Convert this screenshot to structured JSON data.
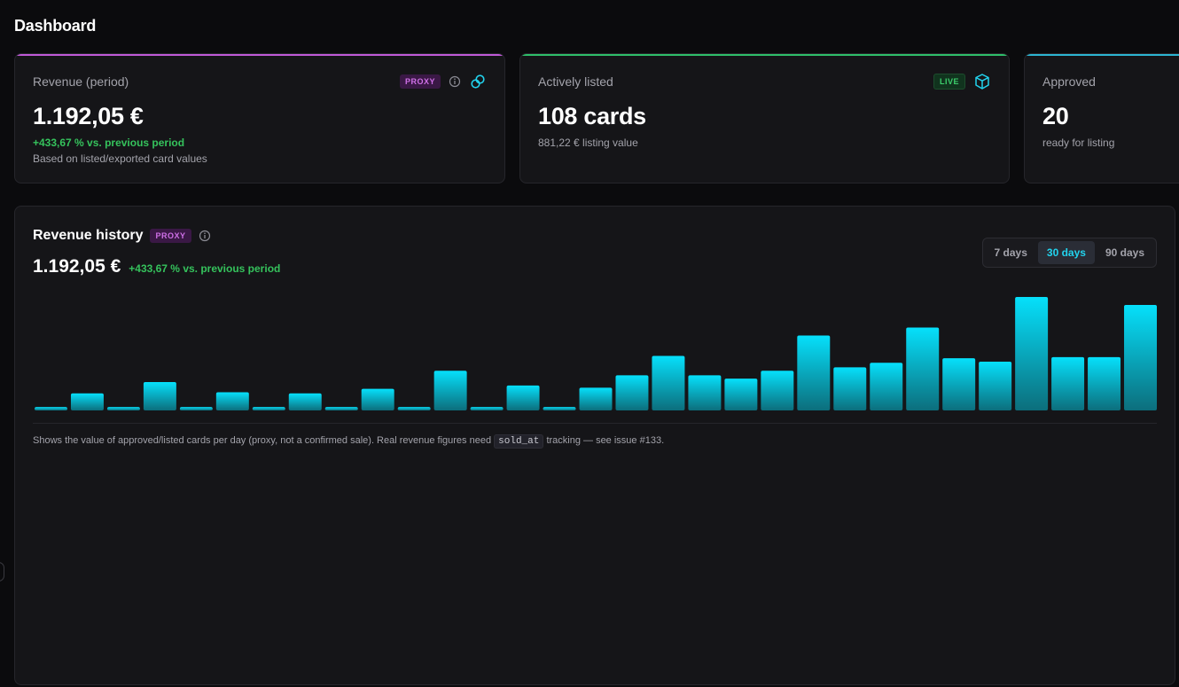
{
  "page": {
    "title": "Dashboard"
  },
  "cards": [
    {
      "label": "Revenue (period)",
      "badge": "PROXY",
      "value": "1.192,05 €",
      "delta": "+433,67 % vs. previous period",
      "sub": "Based on listed/exported card values",
      "accent": "#c05ad8"
    },
    {
      "label": "Actively listed",
      "badge": "LIVE",
      "value": "108 cards",
      "sub": "881,22 € listing value",
      "accent": "#2fbf6a"
    },
    {
      "label": "Approved",
      "value": "20",
      "sub": "ready for listing",
      "accent": "#2db5d2"
    }
  ],
  "chart_panel": {
    "title": "Revenue history",
    "badge": "PROXY",
    "total": "1.192,05 €",
    "delta": "+433,67 % vs. previous period",
    "ranges": [
      {
        "label": "7 days",
        "active": false
      },
      {
        "label": "30 days",
        "active": true
      },
      {
        "label": "90 days",
        "active": false
      }
    ],
    "footnote_before": "Shows the value of approved/listed cards per day (proxy, not a confirmed sale). Real revenue figures need",
    "footnote_code": "sold_at",
    "footnote_after": "tracking — see issue #133."
  },
  "chart_data": {
    "type": "bar",
    "values": [
      3,
      15,
      3,
      25,
      3,
      16,
      3,
      15,
      3,
      19,
      3,
      35,
      3,
      22,
      3,
      20,
      31,
      48,
      31,
      28,
      35,
      66,
      38,
      42,
      73,
      46,
      43,
      100,
      47,
      47,
      93
    ],
    "ylim": [
      0,
      100
    ],
    "bar_color_top": "#06e0fb",
    "bar_color_bottom": "#0c6e7c"
  },
  "icons": {
    "info": "info-icon",
    "link": "link-icon",
    "box": "box-icon"
  }
}
